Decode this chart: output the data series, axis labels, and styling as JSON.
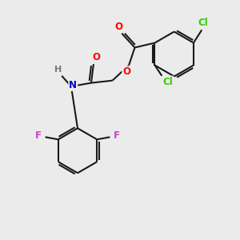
{
  "bg_color": "#ebebeb",
  "bond_color": "#1a1a1a",
  "atom_colors": {
    "O": "#ff0000",
    "N": "#0000cc",
    "Cl": "#33cc00",
    "F": "#cc44cc",
    "H": "#777777",
    "C": "#1a1a1a"
  },
  "figsize": [
    3.0,
    3.0
  ],
  "dpi": 100
}
